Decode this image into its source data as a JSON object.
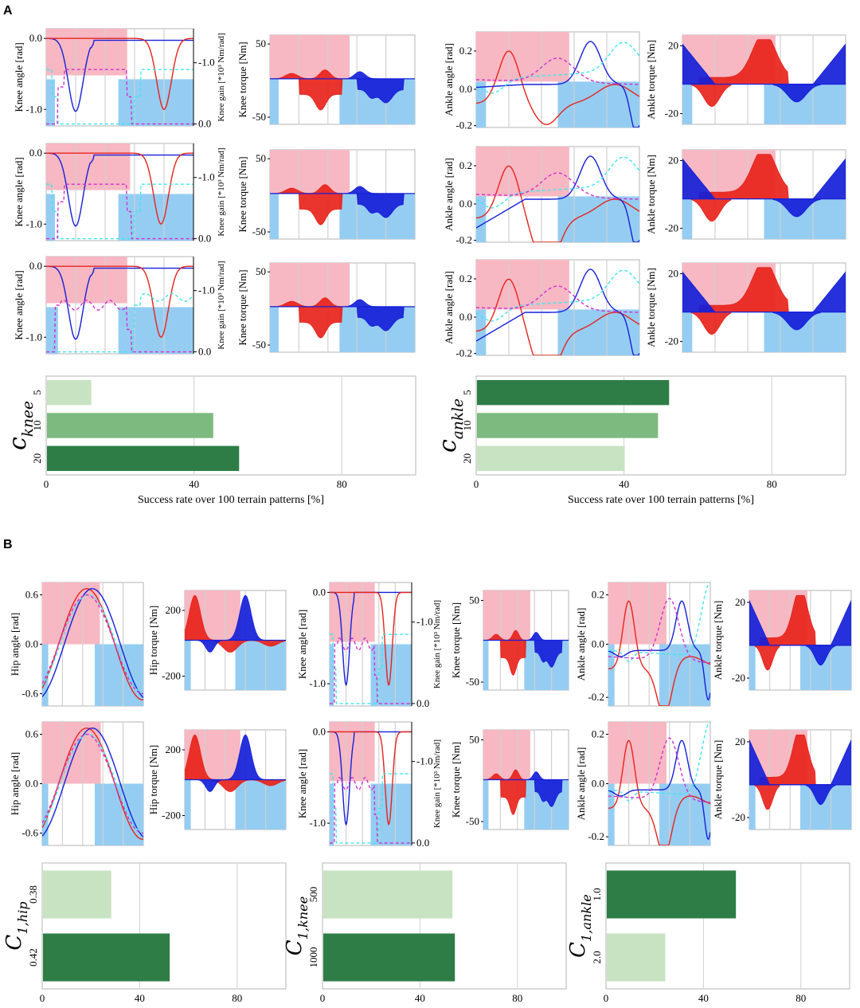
{
  "panels": {
    "a": "A",
    "b": "B"
  },
  "colors": {
    "stance": "#f7b8c3",
    "swing": "#95cdf2",
    "red": "#e8231c",
    "blue": "#1520d8",
    "cyan": "#3ee6ee",
    "magenta": "#d12fd1",
    "dark_green": "#2e7d46",
    "mid_green": "#7cba7f",
    "light_green": "#c8e3c2",
    "grid": "#d0d0d0"
  },
  "axis_labels": {
    "knee_angle": "Knee angle [rad]",
    "knee_gain": "Knee gain [*10³ Nm/rad]",
    "knee_torque": "Knee torque [Nm]",
    "ankle_angle": "Ankle angle [rad]",
    "ankle_torque": "Ankle torque [Nm]",
    "hip_angle": "Hip angle [rad]",
    "hip_torque": "Hip torque [Nm]",
    "success_rate": "Success rate over 100 terrain patterns [%]"
  },
  "ticks": {
    "knee_angle": [
      "0.0",
      "-1.0"
    ],
    "knee_gain": [
      "-1.0",
      "0.0"
    ],
    "torque50": [
      "50",
      "-50"
    ],
    "torque20": [
      "20",
      "-20"
    ],
    "torque200": [
      "200",
      "-200"
    ],
    "ankle_angle": [
      "0.2",
      "0.0",
      "-0.2"
    ],
    "hip_angle": [
      "0.6",
      "0.0",
      "-0.6"
    ],
    "x_bar": [
      "0",
      "40",
      "80"
    ]
  },
  "chart_data": [
    {
      "type": "bar",
      "panel": "A",
      "coefficient": "c_knee",
      "categories": [
        "5",
        "10",
        "20"
      ],
      "values": [
        12,
        45,
        52
      ],
      "xlim": [
        0,
        100
      ],
      "xlabel": "Success rate over 100 terrain patterns [%]"
    },
    {
      "type": "bar",
      "panel": "A",
      "coefficient": "c_ankle",
      "categories": [
        "5",
        "10",
        "20"
      ],
      "values": [
        52,
        49,
        40
      ],
      "xlim": [
        0,
        100
      ],
      "xlabel": "Success rate over 100 terrain patterns [%]"
    },
    {
      "type": "bar",
      "panel": "B",
      "coefficient": "C_1,hip",
      "categories": [
        "0.38",
        "0.42"
      ],
      "values": [
        28,
        52
      ],
      "xlim": [
        0,
        100
      ]
    },
    {
      "type": "bar",
      "panel": "B",
      "coefficient": "C_1,knee",
      "categories": [
        "500",
        "1000"
      ],
      "values": [
        53,
        54
      ],
      "xlim": [
        0,
        100
      ]
    },
    {
      "type": "bar",
      "panel": "B",
      "coefficient": "C_1,ankle",
      "categories": [
        "1.0",
        "2.0"
      ],
      "values": [
        53,
        24
      ],
      "xlim": [
        0,
        100
      ]
    }
  ],
  "coef_labels": {
    "c_knee": {
      "base": "c",
      "sub": "knee"
    },
    "c_ankle": {
      "base": "c",
      "sub": "ankle"
    },
    "c1_hip": {
      "base": "C",
      "sub": "1,hip"
    },
    "c1_knee": {
      "base": "C",
      "sub": "1,knee"
    },
    "c1_ankle": {
      "base": "C",
      "sub": "1,ankle"
    }
  }
}
